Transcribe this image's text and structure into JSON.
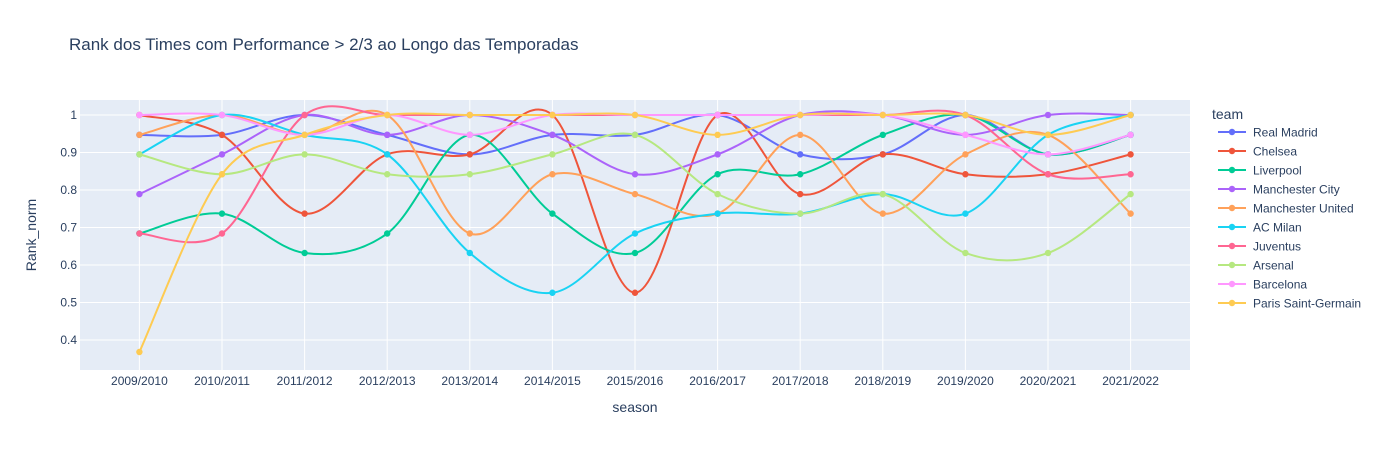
{
  "chart_data": {
    "type": "line",
    "title": "Rank dos Times com Performance > 2/3 ao Longo das Temporadas",
    "xlabel": "season",
    "ylabel": "Rank_norm",
    "legend_title": "team",
    "legend_position": "right",
    "grid": true,
    "line_shape": "spline",
    "ylim": [
      0.32,
      1.04
    ],
    "yticks": [
      0.4,
      0.5,
      0.6,
      0.7,
      0.8,
      0.9,
      1
    ],
    "ytick_labels": [
      "0.4",
      "0.5",
      "0.6",
      "0.7",
      "0.8",
      "0.9",
      "1"
    ],
    "categories": [
      "2009/2010",
      "2010/2011",
      "2011/2012",
      "2012/2013",
      "2013/2014",
      "2014/2015",
      "2015/2016",
      "2016/2017",
      "2017/2018",
      "2018/2019",
      "2019/2020",
      "2020/2021",
      "2021/2022"
    ],
    "series": [
      {
        "name": "Real Madrid",
        "color": "#636efa",
        "values": [
          0.947,
          0.947,
          1.0,
          0.947,
          0.895,
          0.947,
          0.947,
          1.0,
          0.895,
          0.895,
          1.0,
          0.895,
          0.947
        ]
      },
      {
        "name": "Chelsea",
        "color": "#EF553B",
        "values": [
          1.0,
          0.947,
          0.737,
          0.895,
          0.895,
          1.0,
          0.526,
          1.0,
          0.789,
          0.895,
          0.842,
          0.842,
          0.895
        ]
      },
      {
        "name": "Liverpool",
        "color": "#00cc96",
        "values": [
          0.684,
          0.737,
          0.632,
          0.684,
          0.947,
          0.737,
          0.632,
          0.842,
          0.842,
          0.947,
          1.0,
          0.895,
          0.947
        ]
      },
      {
        "name": "Manchester City",
        "color": "#ab63fa",
        "values": [
          0.789,
          0.895,
          1.0,
          0.947,
          1.0,
          0.947,
          0.842,
          0.895,
          1.0,
          1.0,
          0.947,
          1.0,
          1.0
        ]
      },
      {
        "name": "Manchester United",
        "color": "#FFA15A",
        "values": [
          0.947,
          1.0,
          0.947,
          1.0,
          0.684,
          0.842,
          0.789,
          0.737,
          0.947,
          0.737,
          0.895,
          0.947,
          0.737
        ]
      },
      {
        "name": "AC Milan",
        "color": "#19d3f3",
        "values": [
          0.895,
          1.0,
          0.947,
          0.895,
          0.632,
          0.526,
          0.684,
          0.737,
          0.737,
          0.789,
          0.737,
          0.947,
          1.0
        ]
      },
      {
        "name": "Juventus",
        "color": "#FF6692",
        "values": [
          0.684,
          0.684,
          1.0,
          1.0,
          1.0,
          1.0,
          1.0,
          1.0,
          1.0,
          1.0,
          1.0,
          0.842,
          0.842
        ]
      },
      {
        "name": "Arsenal",
        "color": "#B6E880",
        "values": [
          0.895,
          0.842,
          0.895,
          0.842,
          0.842,
          0.895,
          0.947,
          0.789,
          0.737,
          0.789,
          0.632,
          0.632,
          0.789
        ]
      },
      {
        "name": "Barcelona",
        "color": "#FF97FF",
        "values": [
          1.0,
          1.0,
          0.947,
          1.0,
          0.947,
          1.0,
          1.0,
          1.0,
          1.0,
          1.0,
          0.947,
          0.895,
          0.947
        ]
      },
      {
        "name": "Paris Saint-Germain",
        "color": "#FECB52",
        "values": [
          0.368,
          0.842,
          0.947,
          1.0,
          1.0,
          1.0,
          1.0,
          0.947,
          1.0,
          1.0,
          1.0,
          0.947,
          1.0
        ]
      }
    ]
  }
}
